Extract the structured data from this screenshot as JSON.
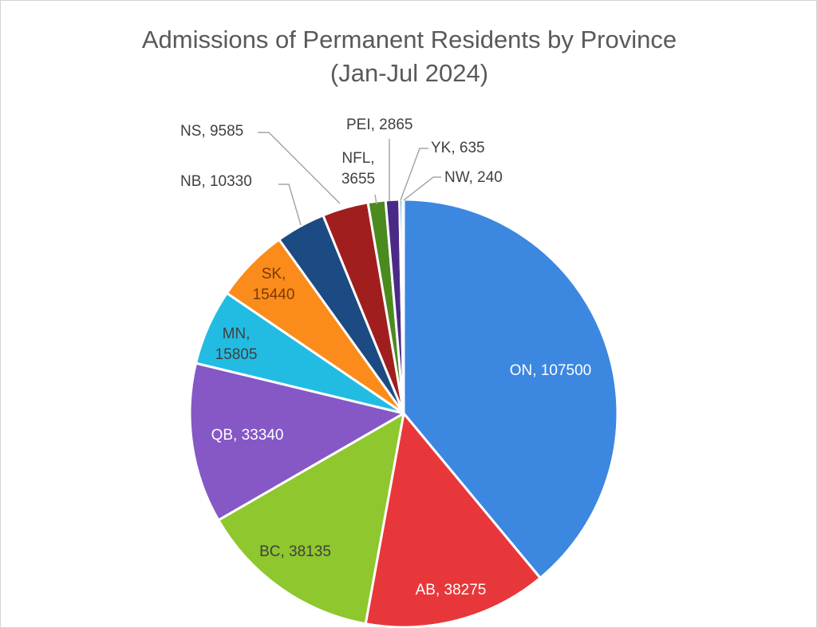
{
  "chart_data": {
    "type": "pie",
    "title": "Admissions of Permanent Residents by Province",
    "subtitle": "(Jan-Jul 2024)",
    "slices": [
      {
        "label": "ON",
        "value": 107500,
        "color": "#3c87e0",
        "label_text": "ON, 107500"
      },
      {
        "label": "AB",
        "value": 38275,
        "color": "#e8373a",
        "label_text": "AB, 38275"
      },
      {
        "label": "BC",
        "value": 38135,
        "color": "#8ec72e",
        "label_text": "BC, 38135"
      },
      {
        "label": "QB",
        "value": 33340,
        "color": "#8558c6",
        "label_text": "QB, 33340"
      },
      {
        "label": "MN",
        "value": 15805,
        "color": "#22bce3",
        "label_text": "MN, 15805"
      },
      {
        "label": "SK",
        "value": 15440,
        "color": "#fb8c1b",
        "label_text": "SK, 15440"
      },
      {
        "label": "NB",
        "value": 10330,
        "color": "#1c4a82",
        "label_text": "NB, 10330"
      },
      {
        "label": "NS",
        "value": 9585,
        "color": "#a11e1e",
        "label_text": "NS, 9585"
      },
      {
        "label": "NFL",
        "value": 3655,
        "color": "#4b8a1e",
        "label_text": "NFL, 3655"
      },
      {
        "label": "PEI",
        "value": 2865,
        "color": "#4a2a86",
        "label_text": "PEI, 2865"
      },
      {
        "label": "YK",
        "value": 635,
        "color": "#2a8fc0",
        "label_text": "YK, 635"
      },
      {
        "label": "NW",
        "value": 240,
        "color": "#c9a020",
        "label_text": "NW, 240"
      }
    ]
  }
}
